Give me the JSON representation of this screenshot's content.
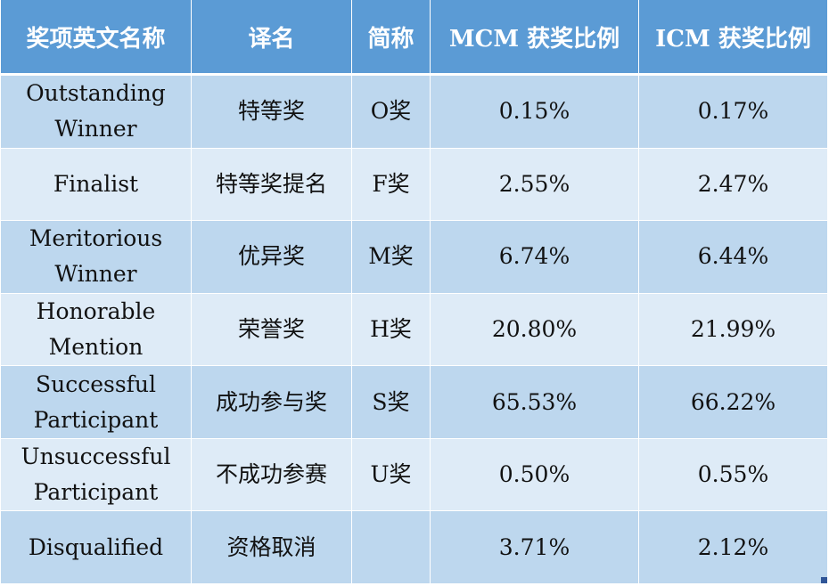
{
  "table": {
    "headers": [
      "奖项英文名称",
      "译名",
      "简称",
      "MCM 获奖比例",
      "ICM 获奖比例"
    ],
    "rows": [
      {
        "english_name": "Outstanding Winner",
        "chinese_name": "特等奖",
        "abbr": "O奖",
        "mcm_ratio": "0.15%",
        "icm_ratio": "0.17%"
      },
      {
        "english_name": "Finalist",
        "chinese_name": "特等奖提名",
        "abbr": "F奖",
        "mcm_ratio": "2.55%",
        "icm_ratio": "2.47%"
      },
      {
        "english_name": "Meritorious Winner",
        "chinese_name": "优异奖",
        "abbr": "M奖",
        "mcm_ratio": "6.74%",
        "icm_ratio": "6.44%"
      },
      {
        "english_name": "Honorable Mention",
        "chinese_name": "荣誉奖",
        "abbr": "H奖",
        "mcm_ratio": "20.80%",
        "icm_ratio": "21.99%"
      },
      {
        "english_name": "Successful Participant",
        "chinese_name": "成功参与奖",
        "abbr": "S奖",
        "mcm_ratio": "65.53%",
        "icm_ratio": "66.22%"
      },
      {
        "english_name": "Unsuccessful Participant",
        "chinese_name": "不成功参赛",
        "abbr": "U奖",
        "mcm_ratio": "0.50%",
        "icm_ratio": "0.55%"
      },
      {
        "english_name": "Disqualified",
        "chinese_name": "资格取消",
        "abbr": "",
        "mcm_ratio": "3.71%",
        "icm_ratio": "2.12%"
      }
    ]
  },
  "colors": {
    "header_bg": "#5b9bd5",
    "row_dark": "#bdd7ee",
    "row_light": "#deebf7"
  }
}
